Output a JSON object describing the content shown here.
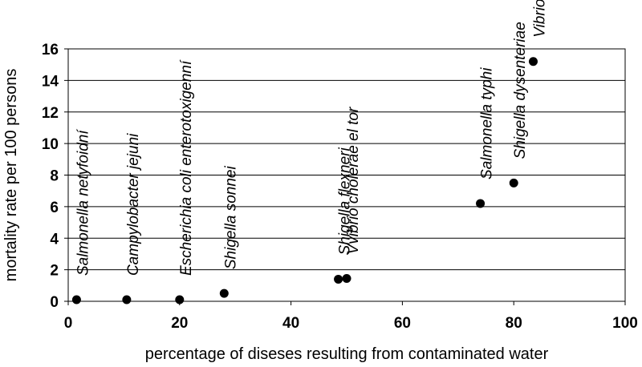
{
  "chart_data": {
    "type": "scatter",
    "title": "",
    "xlabel": "percentage of diseses resulting from contaminated water",
    "ylabel": "mortality rate per 100 persons",
    "xlim": [
      0,
      100
    ],
    "ylim": [
      0,
      16
    ],
    "x_ticks": [
      "0",
      "20",
      "40",
      "60",
      "80",
      "100"
    ],
    "y_ticks": [
      "0",
      "2",
      "4",
      "6",
      "8",
      "10",
      "12",
      "14",
      "16"
    ],
    "grid": "horizontal",
    "legend": "none",
    "marker_color": "#000000",
    "points": [
      {
        "x": 1.5,
        "y": 0.1,
        "label": "Salmonella netyfoidní"
      },
      {
        "x": 10.5,
        "y": 0.1,
        "label": "Campylobacter jejuni"
      },
      {
        "x": 20,
        "y": 0.1,
        "label": "Escherichia coli enterotoxigenní"
      },
      {
        "x": 28,
        "y": 0.5,
        "label": "Shigella sonnei"
      },
      {
        "x": 48.5,
        "y": 1.4,
        "label": "Shigella flexneri"
      },
      {
        "x": 50,
        "y": 1.45,
        "label": "Vvibrio cholerae el tor"
      },
      {
        "x": 74,
        "y": 6.2,
        "label": "Salmonella typhi"
      },
      {
        "x": 80,
        "y": 7.5,
        "label": "Shigella dysenteriae"
      },
      {
        "x": 83.5,
        "y": 15.2,
        "label": "Vibrio cholerae"
      }
    ]
  }
}
